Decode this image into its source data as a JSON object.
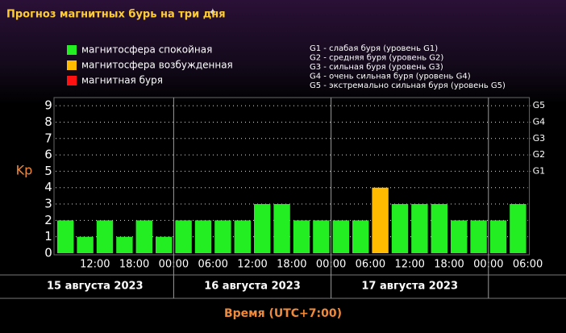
{
  "chart_data": {
    "type": "bar",
    "title": "Прогноз магнитных бурь на три дня",
    "y_label": "Kp",
    "x_label": "Время (UTC+7:00)",
    "legend": [
      {
        "label": "магнитосфера спокойная",
        "color": "#22ee22"
      },
      {
        "label": "магнитосфера возбужденная",
        "color": "#ffbb00"
      },
      {
        "label": "магнитная буря",
        "color": "#ff1111"
      }
    ],
    "storm_scale": [
      "G1 - слабая буря (уровень G1)",
      "G2 - средняя буря (уровень G2)",
      "G3 - сильная буря (уровень G3)",
      "G4 - очень сильная буря (уровень G4)",
      "G5 - экстремально сильная буря (уровень G5)"
    ],
    "categories": [
      null,
      null,
      null,
      null,
      null,
      null,
      null,
      null,
      null,
      null,
      null,
      null,
      null,
      null,
      null,
      null,
      null,
      null,
      null,
      null,
      null,
      null,
      null,
      null
    ],
    "values": [
      2,
      1,
      2,
      1,
      2,
      1,
      2,
      2,
      2,
      2,
      3,
      3,
      2,
      2,
      2,
      2,
      4,
      3,
      3,
      3,
      2,
      2,
      2,
      3
    ],
    "colors": [
      "#22ee22",
      "#22ee22",
      "#22ee22",
      "#22ee22",
      "#22ee22",
      "#22ee22",
      "#22ee22",
      "#22ee22",
      "#22ee22",
      "#22ee22",
      "#22ee22",
      "#22ee22",
      "#22ee22",
      "#22ee22",
      "#22ee22",
      "#22ee22",
      "#ffbb00",
      "#22ee22",
      "#22ee22",
      "#22ee22",
      "#22ee22",
      "#22ee22",
      "#22ee22",
      "#22ee22"
    ],
    "time_labels": [
      "12:00",
      "18:00",
      "00:00",
      "06:00",
      "12:00",
      "18:00",
      "00:00",
      "06:00",
      "12:00",
      "18:00",
      "00:00",
      "06:00"
    ],
    "dates": [
      "15 августа 2023",
      "16 августа 2023",
      "17 августа 2023"
    ],
    "ylim": [
      0,
      9.5
    ],
    "yticks": [
      0,
      1,
      2,
      3,
      4,
      5,
      6,
      7,
      8,
      9
    ],
    "y2ticks": [
      {
        "value": 5,
        "label": "G1"
      },
      {
        "value": 6,
        "label": "G2"
      },
      {
        "value": 7,
        "label": "G3"
      },
      {
        "value": 8,
        "label": "G4"
      },
      {
        "value": 9,
        "label": "G5"
      }
    ],
    "grid": true
  }
}
